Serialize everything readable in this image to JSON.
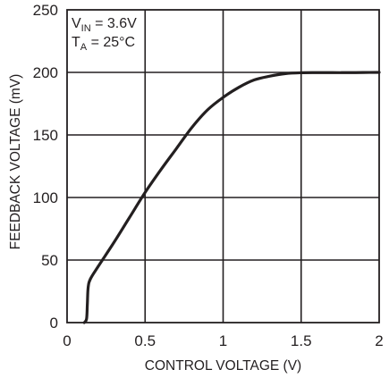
{
  "chart_data": {
    "type": "line",
    "title": "",
    "xlabel": "CONTROL VOLTAGE (V)",
    "ylabel": "FEEDBACK VOLTAGE (mV)",
    "xlim": [
      0,
      2
    ],
    "ylim": [
      0,
      250
    ],
    "x_ticks": [
      0,
      0.5,
      1,
      1.5,
      2
    ],
    "x_tick_labels": [
      "0",
      "0.5",
      "1",
      "1.5",
      "2"
    ],
    "y_ticks": [
      0,
      50,
      100,
      150,
      200,
      250
    ],
    "y_tick_labels": [
      "0",
      "50",
      "100",
      "150",
      "200",
      "250"
    ],
    "grid": true,
    "legend": "none",
    "annotations": {
      "vin": {
        "main": "V",
        "sub": "IN",
        "rest": " = 3.6V"
      },
      "ta": {
        "main": "T",
        "sub": "A",
        "rest": " = 25°C"
      }
    },
    "series": [
      {
        "color": "#231f20",
        "x": [
          0.11,
          0.125,
          0.13,
          0.135,
          0.15,
          0.2,
          0.3,
          0.4,
          0.5,
          0.6,
          0.7,
          0.8,
          0.9,
          1.0,
          1.1,
          1.2,
          1.3,
          1.4,
          1.5,
          1.6,
          1.7,
          1.8,
          1.9,
          2.0
        ],
        "y": [
          0,
          3,
          15,
          28,
          35,
          45,
          64,
          84,
          104,
          122,
          139,
          156,
          170,
          180,
          188,
          194,
          197,
          199,
          199.7,
          199.8,
          199.8,
          199.8,
          199.9,
          200
        ]
      }
    ]
  }
}
